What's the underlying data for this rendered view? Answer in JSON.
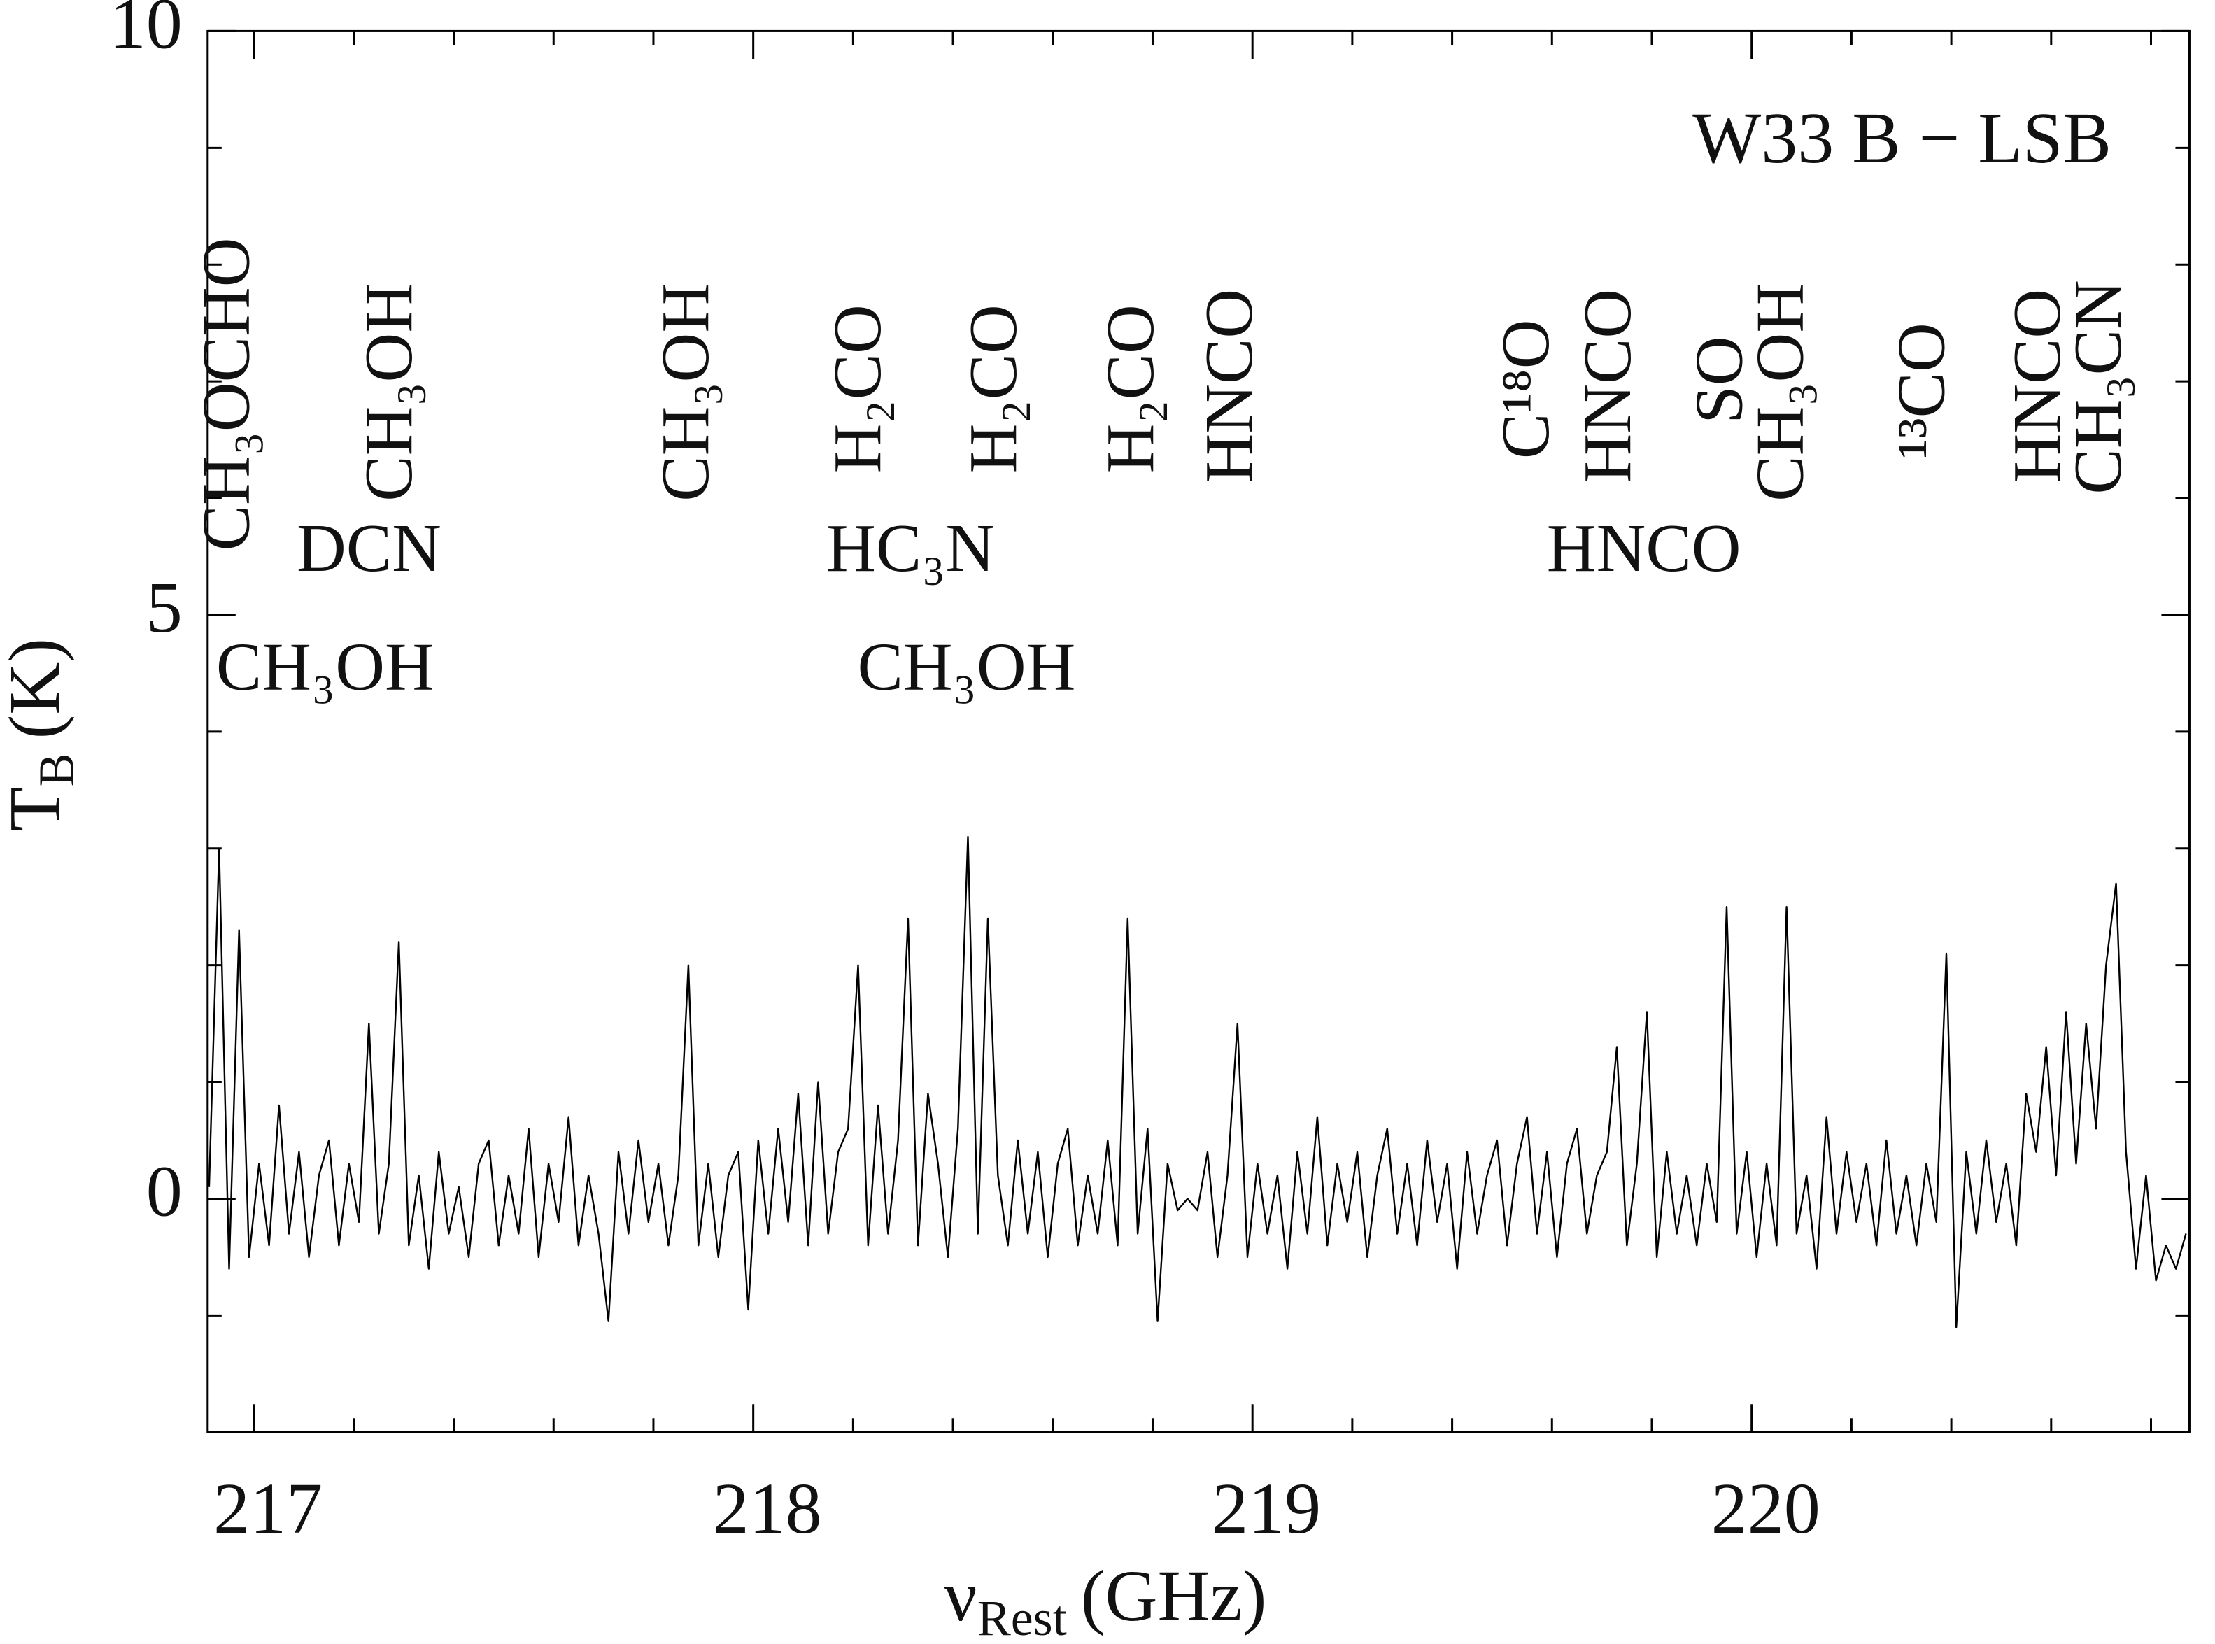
{
  "chart_data": {
    "type": "line",
    "title": "W33 B − LSB",
    "xlabel": [
      "ν",
      "Rest",
      "(GHz)"
    ],
    "ylabel": [
      "T",
      "B",
      "(K)"
    ],
    "color": "#000000",
    "xlim": [
      216.907,
      220.877
    ],
    "ylim": [
      -2,
      10
    ],
    "xticks": [
      217,
      218,
      219,
      220
    ],
    "xminorticks": [
      217.2,
      217.4,
      217.6,
      217.8,
      218.2,
      218.4,
      218.6,
      218.8,
      219.2,
      219.4,
      219.6,
      219.8,
      220.2,
      220.4,
      220.6,
      220.8
    ],
    "yticks": [
      0,
      5,
      10
    ],
    "yminorticks": [
      -1,
      1,
      2,
      3,
      4,
      6,
      7,
      8,
      9
    ],
    "annotations": [
      "CH₃OCHO",
      "CH₃OH",
      "CH₃OH",
      "H₂CO",
      "H₂CO",
      "H₂CO",
      "HNCO",
      "C¹⁸O",
      "HNCO",
      "SO",
      "CH₃OH",
      "¹³CO",
      "HNCO",
      "CH₃CN",
      "DCN",
      "HC₃N",
      "HNCO",
      "CH₃OH",
      "CH₃OH"
    ],
    "x": [
      216.91,
      216.93,
      216.95,
      216.97,
      216.99,
      217.01,
      217.03,
      217.05,
      217.07,
      217.09,
      217.11,
      217.13,
      217.15,
      217.17,
      217.19,
      217.21,
      217.23,
      217.25,
      217.27,
      217.29,
      217.31,
      217.33,
      217.35,
      217.37,
      217.39,
      217.41,
      217.43,
      217.45,
      217.47,
      217.49,
      217.51,
      217.53,
      217.55,
      217.57,
      217.59,
      217.61,
      217.63,
      217.65,
      217.67,
      217.69,
      217.71,
      217.73,
      217.75,
      217.77,
      217.79,
      217.81,
      217.83,
      217.85,
      217.87,
      217.89,
      217.91,
      217.93,
      217.95,
      217.97,
      217.99,
      218.01,
      218.03,
      218.05,
      218.07,
      218.09,
      218.11,
      218.13,
      218.15,
      218.17,
      218.19,
      218.21,
      218.23,
      218.25,
      218.27,
      218.29,
      218.31,
      218.33,
      218.35,
      218.37,
      218.39,
      218.41,
      218.43,
      218.45,
      218.47,
      218.49,
      218.51,
      218.53,
      218.55,
      218.57,
      218.59,
      218.61,
      218.63,
      218.65,
      218.67,
      218.69,
      218.71,
      218.73,
      218.75,
      218.77,
      218.79,
      218.81,
      218.83,
      218.85,
      218.87,
      218.89,
      218.91,
      218.93,
      218.95,
      218.97,
      218.99,
      219.01,
      219.03,
      219.05,
      219.07,
      219.09,
      219.11,
      219.13,
      219.15,
      219.17,
      219.19,
      219.21,
      219.23,
      219.25,
      219.27,
      219.29,
      219.31,
      219.33,
      219.35,
      219.37,
      219.39,
      219.41,
      219.43,
      219.45,
      219.47,
      219.49,
      219.51,
      219.53,
      219.55,
      219.57,
      219.59,
      219.61,
      219.63,
      219.65,
      219.67,
      219.69,
      219.71,
      219.73,
      219.75,
      219.77,
      219.79,
      219.81,
      219.83,
      219.85,
      219.87,
      219.89,
      219.91,
      219.93,
      219.95,
      219.97,
      219.99,
      220.01,
      220.03,
      220.05,
      220.07,
      220.09,
      220.11,
      220.13,
      220.15,
      220.17,
      220.19,
      220.21,
      220.23,
      220.25,
      220.27,
      220.29,
      220.31,
      220.33,
      220.35,
      220.37,
      220.39,
      220.41,
      220.43,
      220.45,
      220.47,
      220.49,
      220.51,
      220.53,
      220.55,
      220.57,
      220.59,
      220.61,
      220.63,
      220.65,
      220.67,
      220.69,
      220.71,
      220.73,
      220.75,
      220.77,
      220.79,
      220.81,
      220.83,
      220.85,
      220.87
    ],
    "values": [
      0.1,
      3.0,
      -0.6,
      2.3,
      -0.5,
      0.3,
      -0.4,
      0.8,
      -0.3,
      0.4,
      -0.5,
      0.2,
      0.5,
      -0.4,
      0.3,
      -0.2,
      1.5,
      -0.3,
      0.3,
      2.2,
      -0.4,
      0.2,
      -0.6,
      0.4,
      -0.3,
      0.1,
      -0.5,
      0.3,
      0.5,
      -0.4,
      0.2,
      -0.3,
      0.6,
      -0.5,
      0.3,
      -0.2,
      0.7,
      -0.4,
      0.2,
      -0.3,
      -1.05,
      0.4,
      -0.3,
      0.5,
      -0.2,
      0.3,
      -0.4,
      0.2,
      2.0,
      -0.4,
      0.3,
      -0.5,
      0.2,
      0.4,
      -0.95,
      0.5,
      -0.3,
      0.6,
      -0.2,
      0.9,
      -0.4,
      1.0,
      -0.3,
      0.4,
      0.6,
      2.0,
      -0.4,
      0.8,
      -0.3,
      0.5,
      2.4,
      -0.4,
      0.9,
      0.3,
      -0.5,
      0.6,
      3.1,
      -0.3,
      2.4,
      0.2,
      -0.4,
      0.5,
      -0.3,
      0.4,
      -0.5,
      0.3,
      0.6,
      -0.4,
      0.2,
      -0.3,
      0.5,
      -0.4,
      2.4,
      -0.3,
      0.6,
      -1.05,
      0.3,
      -0.1,
      0.0,
      -0.1,
      0.4,
      -0.5,
      0.2,
      1.5,
      -0.5,
      0.3,
      -0.3,
      0.2,
      -0.6,
      0.4,
      -0.3,
      0.7,
      -0.4,
      0.3,
      -0.2,
      0.4,
      -0.5,
      0.2,
      0.6,
      -0.3,
      0.3,
      -0.4,
      0.5,
      -0.2,
      0.3,
      -0.6,
      0.4,
      -0.3,
      0.2,
      0.5,
      -0.4,
      0.3,
      0.7,
      -0.3,
      0.4,
      -0.5,
      0.3,
      0.6,
      -0.3,
      0.2,
      0.4,
      1.3,
      -0.4,
      0.3,
      1.6,
      -0.5,
      0.4,
      -0.3,
      0.2,
      -0.4,
      0.3,
      -0.2,
      2.5,
      -0.3,
      0.4,
      -0.5,
      0.3,
      -0.4,
      2.5,
      -0.3,
      0.2,
      -0.6,
      0.7,
      -0.3,
      0.4,
      -0.2,
      0.3,
      -0.4,
      0.5,
      -0.3,
      0.2,
      -0.4,
      0.3,
      -0.2,
      2.1,
      -1.1,
      0.4,
      -0.3,
      0.5,
      -0.2,
      0.3,
      -0.4,
      0.9,
      0.4,
      1.3,
      0.2,
      1.6,
      0.3,
      1.5,
      0.6,
      2.0,
      2.7,
      0.4,
      -0.6,
      0.2,
      -0.7,
      -0.4,
      -0.6,
      -0.3
    ]
  }
}
